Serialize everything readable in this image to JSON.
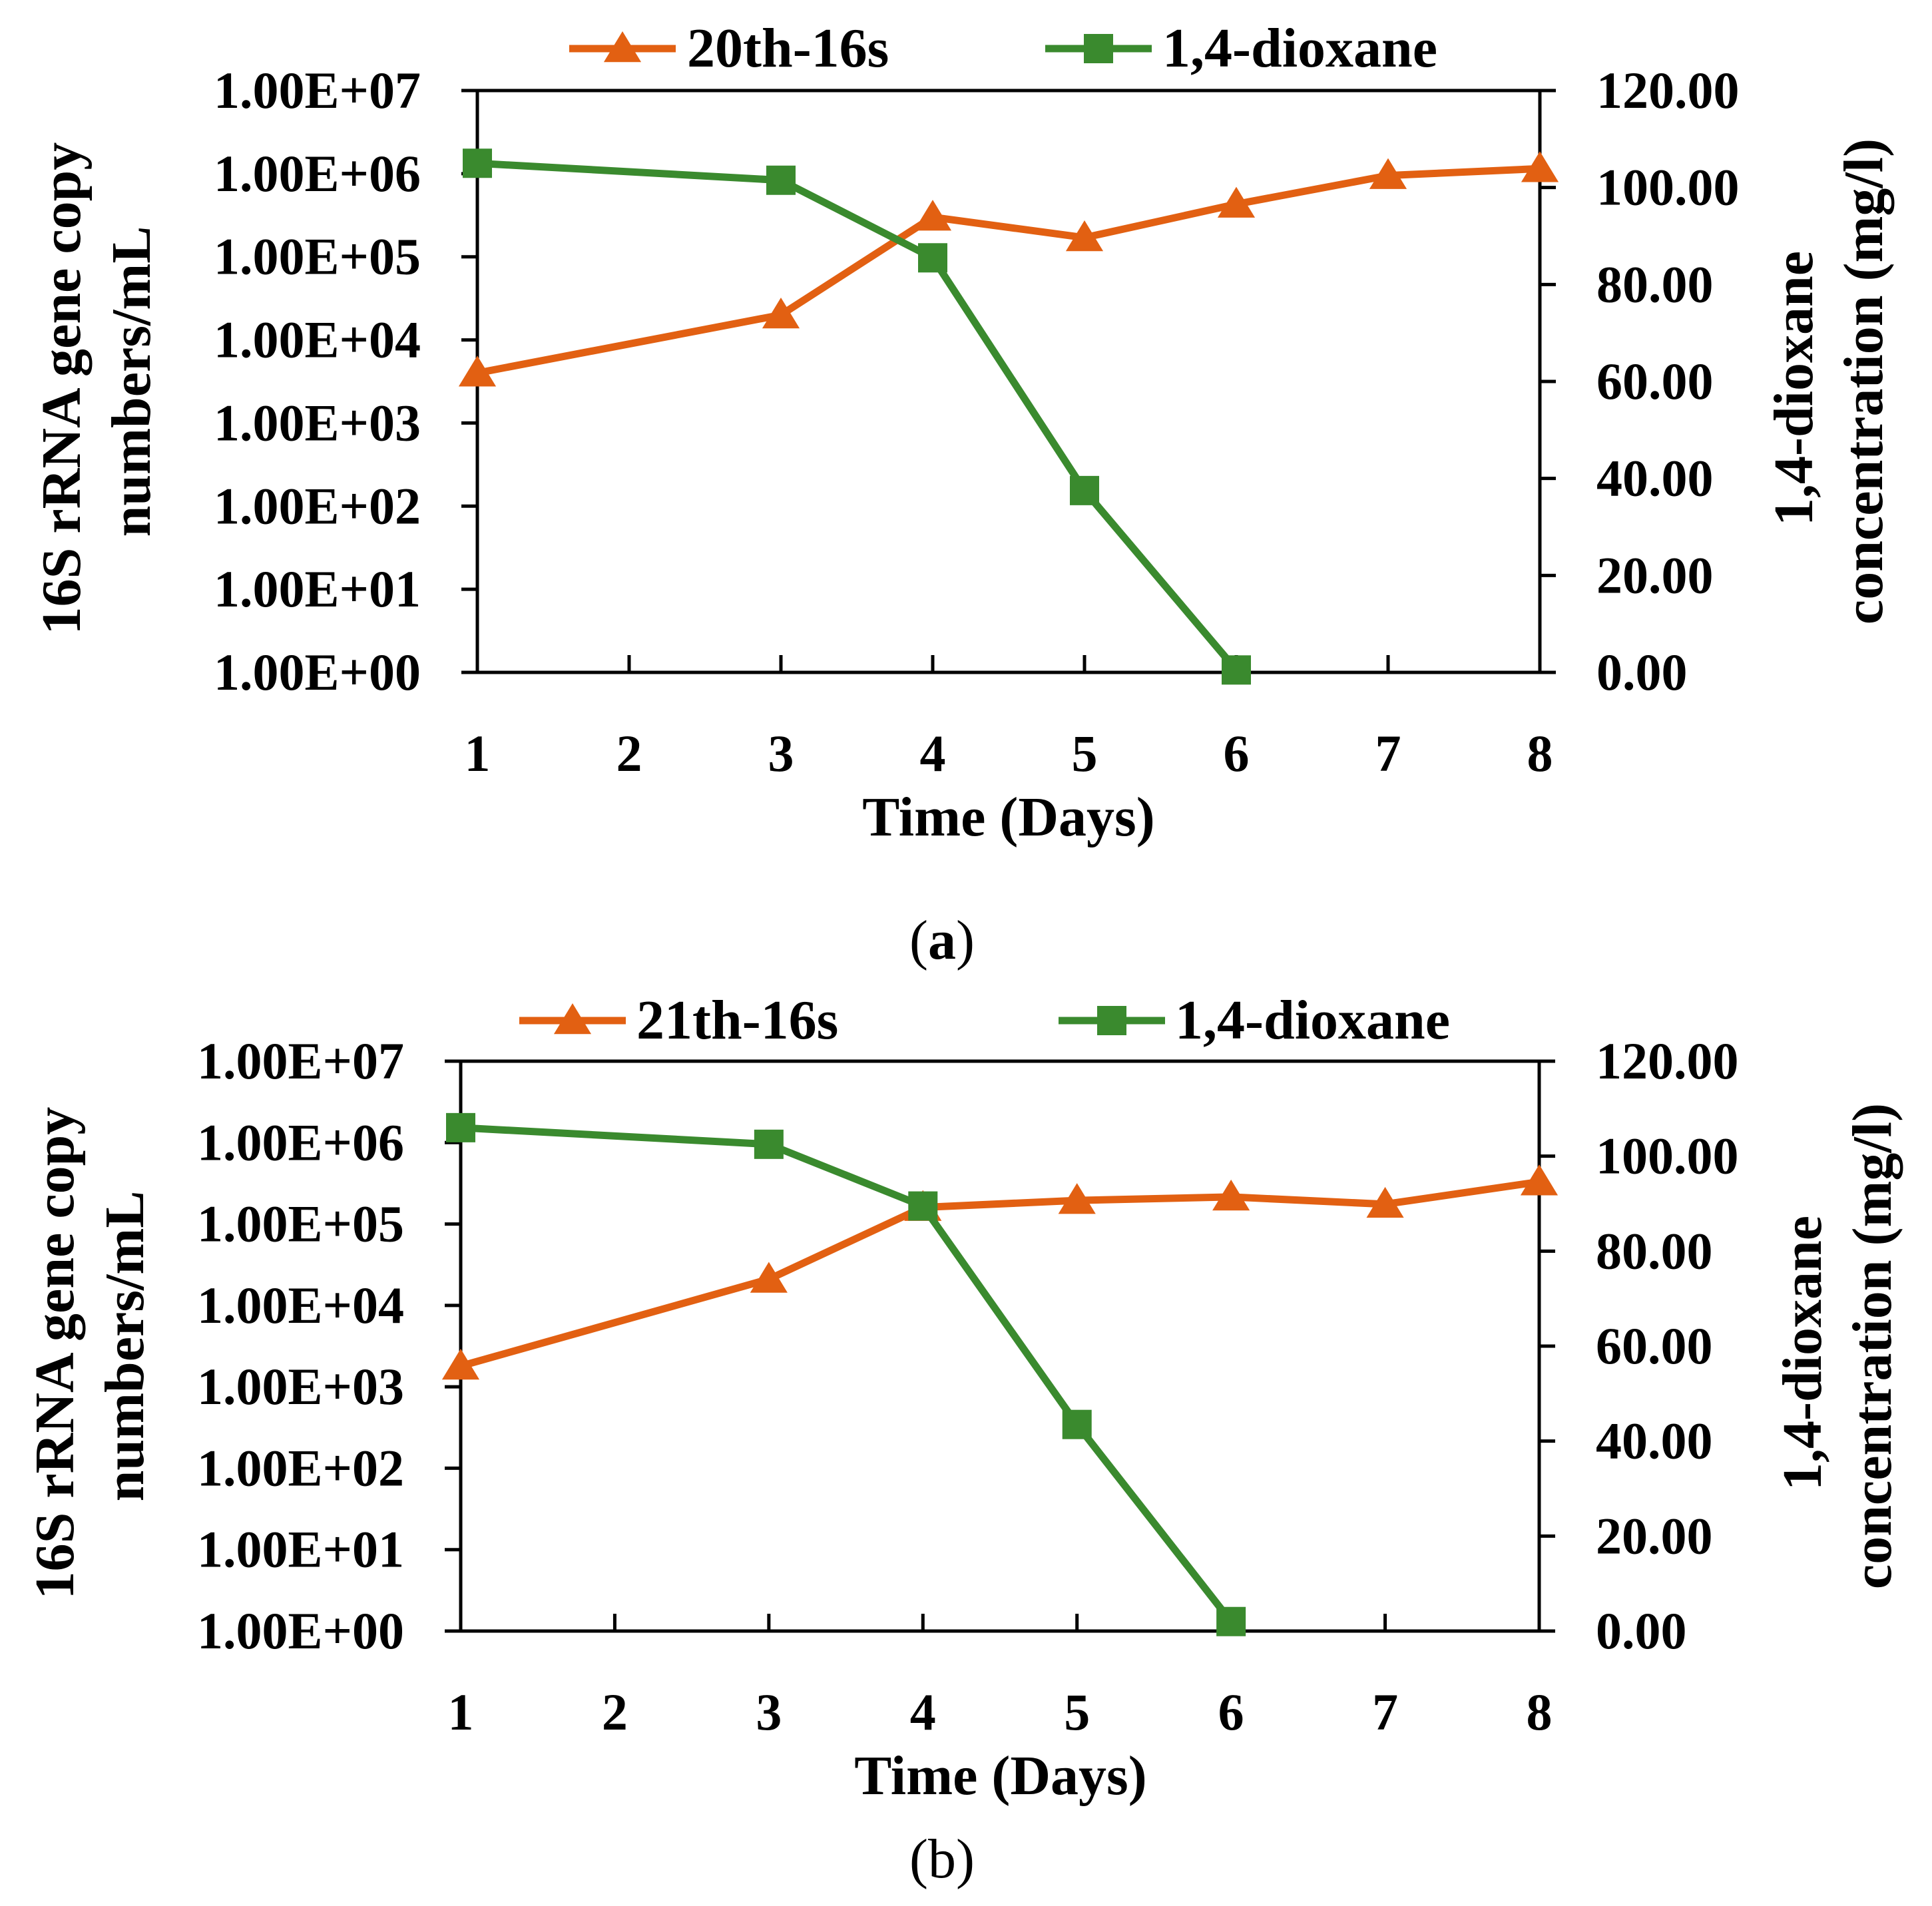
{
  "chart_data": [
    {
      "panel_label": "a",
      "type": "line",
      "x_axis": {
        "label": "Time (Days)",
        "ticks": [
          1,
          2,
          3,
          4,
          5,
          6,
          7,
          8
        ],
        "range": [
          1,
          8
        ]
      },
      "y_left": {
        "label_lines": [
          "16S rRNA gene copy",
          "numbers/mL"
        ],
        "scale": "log",
        "range": [
          1,
          10000000
        ],
        "tick_labels": [
          "1.00E+00",
          "1.00E+01",
          "1.00E+02",
          "1.00E+03",
          "1.00E+04",
          "1.00E+05",
          "1.00E+06",
          "1.00E+07"
        ]
      },
      "y_right": {
        "label_lines": [
          "1,4-dioxane",
          "concentration (mg/l)"
        ],
        "scale": "linear",
        "range": [
          0,
          120
        ],
        "tick_labels": [
          "0.00",
          "20.00",
          "40.00",
          "60.00",
          "80.00",
          "100.00",
          "120.00"
        ]
      },
      "legend_position": "top",
      "grid": false,
      "series": [
        {
          "name": "20th-16s",
          "axis": "left",
          "marker": "triangle",
          "color": "#E26012",
          "x": [
            1,
            3,
            4,
            5,
            6,
            7,
            8
          ],
          "y": [
            4000,
            20000,
            300000,
            170000,
            430000,
            950000,
            1150000
          ]
        },
        {
          "name": "1,4-dioxane",
          "axis": "right",
          "marker": "square",
          "color": "#3A8A2E",
          "x": [
            1,
            3,
            4,
            5,
            6
          ],
          "y": [
            105,
            101.5,
            85.5,
            37.5,
            0.5
          ]
        }
      ]
    },
    {
      "panel_label": "b",
      "type": "line",
      "x_axis": {
        "label": "Time (Days)",
        "ticks": [
          1,
          2,
          3,
          4,
          5,
          6,
          7,
          8
        ],
        "range": [
          1,
          8
        ]
      },
      "y_left": {
        "label_lines": [
          "16S rRNA gene copy",
          "numbers/mL"
        ],
        "scale": "log",
        "range": [
          1,
          10000000
        ],
        "tick_labels": [
          "1.00E+00",
          "1.00E+01",
          "1.00E+02",
          "1.00E+03",
          "1.00E+04",
          "1.00E+05",
          "1.00E+06",
          "1.00E+07"
        ]
      },
      "y_right": {
        "label_lines": [
          "1,4-dioxane",
          "concentration (mg/l)"
        ],
        "scale": "linear",
        "range": [
          0,
          120
        ],
        "tick_labels": [
          "0.00",
          "20.00",
          "40.00",
          "60.00",
          "80.00",
          "100.00",
          "120.00"
        ]
      },
      "legend_position": "top",
      "grid": false,
      "series": [
        {
          "name": "21th-16s",
          "axis": "left",
          "marker": "triangle",
          "color": "#E26012",
          "x": [
            1,
            3,
            4,
            5,
            6,
            7,
            8
          ],
          "y": [
            1800,
            21000,
            160000,
            195000,
            215000,
            175000,
            330000
          ]
        },
        {
          "name": "1,4-dioxane",
          "axis": "right",
          "marker": "square",
          "color": "#3A8A2E",
          "x": [
            1,
            3,
            4,
            5,
            6
          ],
          "y": [
            106,
            102.5,
            89.5,
            43.5,
            2
          ]
        }
      ]
    }
  ]
}
